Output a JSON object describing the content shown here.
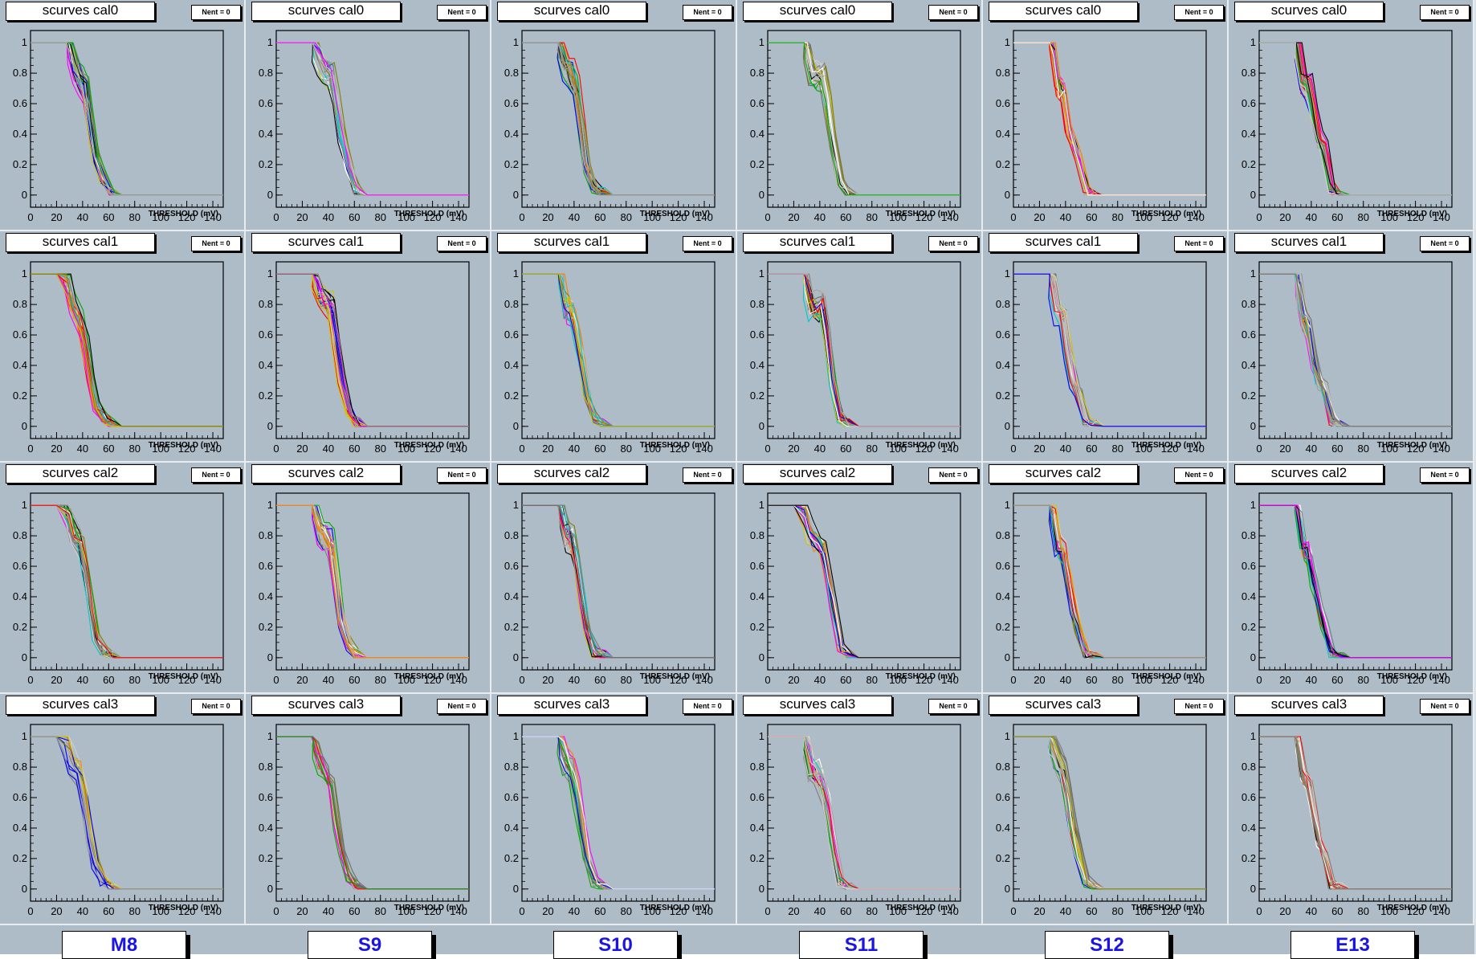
{
  "module_labels": [
    "M8",
    "S9",
    "S10",
    "S11",
    "S12",
    "E13"
  ],
  "row_titles": [
    "scurves cal0",
    "scurves cal1",
    "scurves cal2",
    "scurves cal3"
  ],
  "stats_label": "Nent = 0",
  "colors": {
    "pad_bg": "#adbcc6",
    "canvas_bg": "#dbe2e7",
    "label_text": "#1b14e6"
  },
  "chart_data": {
    "type": "line",
    "grid": false,
    "xlabel": "THRESHOLD (mV)",
    "xlim": [
      0,
      148
    ],
    "ylim": [
      -0.08,
      1.08
    ],
    "xticks": [
      0,
      20,
      40,
      60,
      80,
      100,
      120,
      140
    ],
    "yticks": [
      0,
      0.2,
      0.4,
      0.6,
      0.8,
      1
    ],
    "panels": [
      {
        "module": "M8",
        "title": "scurves cal0",
        "mean_x": [
          0,
          28,
          30,
          34,
          38,
          42,
          46,
          50,
          56,
          62,
          70,
          148
        ],
        "mean_y": [
          1,
          1,
          0.98,
          0.85,
          0.78,
          0.7,
          0.45,
          0.25,
          0.1,
          0.02,
          0,
          0
        ]
      },
      {
        "module": "S9",
        "title": "scurves cal0",
        "mean_x": [
          0,
          28,
          30,
          34,
          38,
          42,
          46,
          50,
          56,
          62,
          70,
          148
        ],
        "mean_y": [
          1,
          1,
          0.98,
          0.88,
          0.82,
          0.8,
          0.62,
          0.4,
          0.18,
          0.04,
          0,
          0
        ]
      },
      {
        "module": "S10",
        "title": "scurves cal0",
        "mean_x": [
          0,
          28,
          30,
          34,
          38,
          42,
          46,
          50,
          56,
          62,
          70,
          148
        ],
        "mean_y": [
          1,
          1,
          0.97,
          0.86,
          0.82,
          0.7,
          0.45,
          0.2,
          0.05,
          0.01,
          0,
          0
        ]
      },
      {
        "module": "S11",
        "title": "scurves cal0",
        "mean_x": [
          0,
          28,
          30,
          34,
          38,
          42,
          46,
          50,
          56,
          62,
          70,
          148
        ],
        "mean_y": [
          1,
          1,
          0.97,
          0.82,
          0.8,
          0.8,
          0.62,
          0.35,
          0.08,
          0.01,
          0,
          0
        ]
      },
      {
        "module": "S12",
        "title": "scurves cal0",
        "mean_x": [
          0,
          28,
          30,
          34,
          38,
          42,
          46,
          50,
          56,
          62,
          70,
          148
        ],
        "mean_y": [
          1,
          1,
          0.98,
          0.72,
          0.7,
          0.45,
          0.32,
          0.22,
          0.02,
          0,
          0,
          0
        ]
      },
      {
        "module": "E13",
        "title": "scurves cal0",
        "mean_x": [
          0,
          28,
          30,
          34,
          38,
          42,
          46,
          50,
          56,
          62,
          70,
          148
        ],
        "mean_y": [
          1,
          1,
          0.97,
          0.75,
          0.72,
          0.55,
          0.38,
          0.3,
          0.04,
          0,
          0,
          0
        ]
      },
      {
        "module": "M8",
        "title": "scurves cal1",
        "mean_x": [
          0,
          20,
          28,
          32,
          38,
          42,
          46,
          50,
          56,
          62,
          70,
          148
        ],
        "mean_y": [
          1,
          1,
          0.98,
          0.82,
          0.72,
          0.55,
          0.32,
          0.15,
          0.06,
          0.01,
          0,
          0
        ]
      },
      {
        "module": "S9",
        "title": "scurves cal1",
        "mean_x": [
          0,
          28,
          30,
          34,
          38,
          42,
          46,
          50,
          56,
          62,
          70,
          148
        ],
        "mean_y": [
          1,
          1,
          0.98,
          0.86,
          0.84,
          0.8,
          0.55,
          0.3,
          0.1,
          0.02,
          0,
          0
        ]
      },
      {
        "module": "S10",
        "title": "scurves cal1",
        "mean_x": [
          0,
          28,
          30,
          34,
          38,
          42,
          46,
          50,
          56,
          62,
          70,
          148
        ],
        "mean_y": [
          1,
          1,
          0.98,
          0.8,
          0.78,
          0.62,
          0.45,
          0.22,
          0.06,
          0.01,
          0,
          0
        ]
      },
      {
        "module": "S11",
        "title": "scurves cal1",
        "mean_x": [
          0,
          28,
          30,
          34,
          38,
          42,
          46,
          50,
          56,
          62,
          70,
          148
        ],
        "mean_y": [
          1,
          1,
          0.97,
          0.8,
          0.8,
          0.82,
          0.6,
          0.3,
          0.06,
          0.01,
          0,
          0
        ]
      },
      {
        "module": "S12",
        "title": "scurves cal1",
        "mean_x": [
          0,
          28,
          30,
          34,
          38,
          42,
          46,
          50,
          56,
          62,
          70,
          148
        ],
        "mean_y": [
          1,
          1,
          0.98,
          0.76,
          0.74,
          0.48,
          0.3,
          0.22,
          0.02,
          0,
          0,
          0
        ]
      },
      {
        "module": "E13",
        "title": "scurves cal1",
        "mean_x": [
          0,
          28,
          30,
          34,
          38,
          42,
          46,
          50,
          56,
          62,
          70,
          148
        ],
        "mean_y": [
          1,
          1,
          0.97,
          0.72,
          0.66,
          0.45,
          0.3,
          0.25,
          0.04,
          0,
          0,
          0
        ]
      },
      {
        "module": "M8",
        "title": "scurves cal2",
        "mean_x": [
          0,
          20,
          28,
          32,
          38,
          42,
          46,
          50,
          56,
          62,
          70,
          148
        ],
        "mean_y": [
          1,
          1,
          0.98,
          0.85,
          0.76,
          0.6,
          0.35,
          0.15,
          0.05,
          0.01,
          0,
          0
        ]
      },
      {
        "module": "S9",
        "title": "scurves cal2",
        "mean_x": [
          0,
          28,
          30,
          34,
          38,
          42,
          46,
          50,
          56,
          62,
          70,
          148
        ],
        "mean_y": [
          1,
          1,
          0.98,
          0.84,
          0.8,
          0.75,
          0.5,
          0.25,
          0.08,
          0.02,
          0,
          0
        ]
      },
      {
        "module": "S10",
        "title": "scurves cal2",
        "mean_x": [
          0,
          28,
          30,
          34,
          38,
          42,
          46,
          50,
          56,
          62,
          70,
          148
        ],
        "mean_y": [
          1,
          1,
          0.98,
          0.82,
          0.8,
          0.62,
          0.38,
          0.18,
          0.04,
          0.01,
          0,
          0
        ]
      },
      {
        "module": "S11",
        "title": "scurves cal2",
        "mean_x": [
          0,
          20,
          28,
          32,
          38,
          42,
          46,
          50,
          56,
          62,
          70,
          148
        ],
        "mean_y": [
          1,
          1,
          0.98,
          0.85,
          0.78,
          0.75,
          0.55,
          0.35,
          0.08,
          0.01,
          0,
          0
        ]
      },
      {
        "module": "S12",
        "title": "scurves cal2",
        "mean_x": [
          0,
          28,
          30,
          34,
          38,
          42,
          46,
          50,
          56,
          62,
          70,
          148
        ],
        "mean_y": [
          1,
          1,
          0.98,
          0.75,
          0.72,
          0.5,
          0.32,
          0.18,
          0.02,
          0,
          0,
          0
        ]
      },
      {
        "module": "E13",
        "title": "scurves cal2",
        "mean_x": [
          0,
          28,
          30,
          34,
          38,
          42,
          46,
          50,
          56,
          62,
          70,
          148
        ],
        "mean_y": [
          1,
          1,
          0.97,
          0.72,
          0.7,
          0.52,
          0.36,
          0.22,
          0.03,
          0,
          0,
          0
        ]
      },
      {
        "module": "M8",
        "title": "scurves cal3",
        "mean_x": [
          0,
          20,
          28,
          32,
          38,
          42,
          46,
          50,
          56,
          62,
          70,
          148
        ],
        "mean_y": [
          1,
          1,
          0.98,
          0.85,
          0.78,
          0.6,
          0.38,
          0.18,
          0.06,
          0.01,
          0,
          0
        ]
      },
      {
        "module": "S9",
        "title": "scurves cal3",
        "mean_x": [
          0,
          28,
          30,
          34,
          38,
          42,
          46,
          50,
          56,
          62,
          70,
          148
        ],
        "mean_y": [
          1,
          1,
          0.98,
          0.84,
          0.78,
          0.72,
          0.46,
          0.28,
          0.08,
          0.02,
          0,
          0
        ]
      },
      {
        "module": "S10",
        "title": "scurves cal3",
        "mean_x": [
          0,
          28,
          30,
          34,
          38,
          42,
          46,
          50,
          56,
          62,
          70,
          148
        ],
        "mean_y": [
          1,
          1,
          0.97,
          0.86,
          0.82,
          0.65,
          0.42,
          0.2,
          0.05,
          0.01,
          0,
          0
        ]
      },
      {
        "module": "S11",
        "title": "scurves cal3",
        "mean_x": [
          0,
          28,
          30,
          34,
          38,
          42,
          46,
          50,
          56,
          62,
          70,
          148
        ],
        "mean_y": [
          1,
          1,
          0.97,
          0.8,
          0.78,
          0.72,
          0.55,
          0.3,
          0.05,
          0.01,
          0,
          0
        ]
      },
      {
        "module": "S12",
        "title": "scurves cal3",
        "mean_x": [
          0,
          28,
          30,
          34,
          38,
          42,
          46,
          50,
          56,
          62,
          70,
          148
        ],
        "mean_y": [
          1,
          1,
          0.98,
          0.88,
          0.8,
          0.62,
          0.4,
          0.25,
          0.05,
          0,
          0,
          0
        ]
      },
      {
        "module": "E13",
        "title": "scurves cal3",
        "mean_x": [
          0,
          28,
          30,
          34,
          38,
          42,
          46,
          50,
          56,
          62,
          70,
          148
        ],
        "mean_y": [
          1,
          1,
          0.97,
          0.74,
          0.68,
          0.5,
          0.32,
          0.24,
          0.03,
          0,
          0,
          0
        ]
      }
    ]
  }
}
